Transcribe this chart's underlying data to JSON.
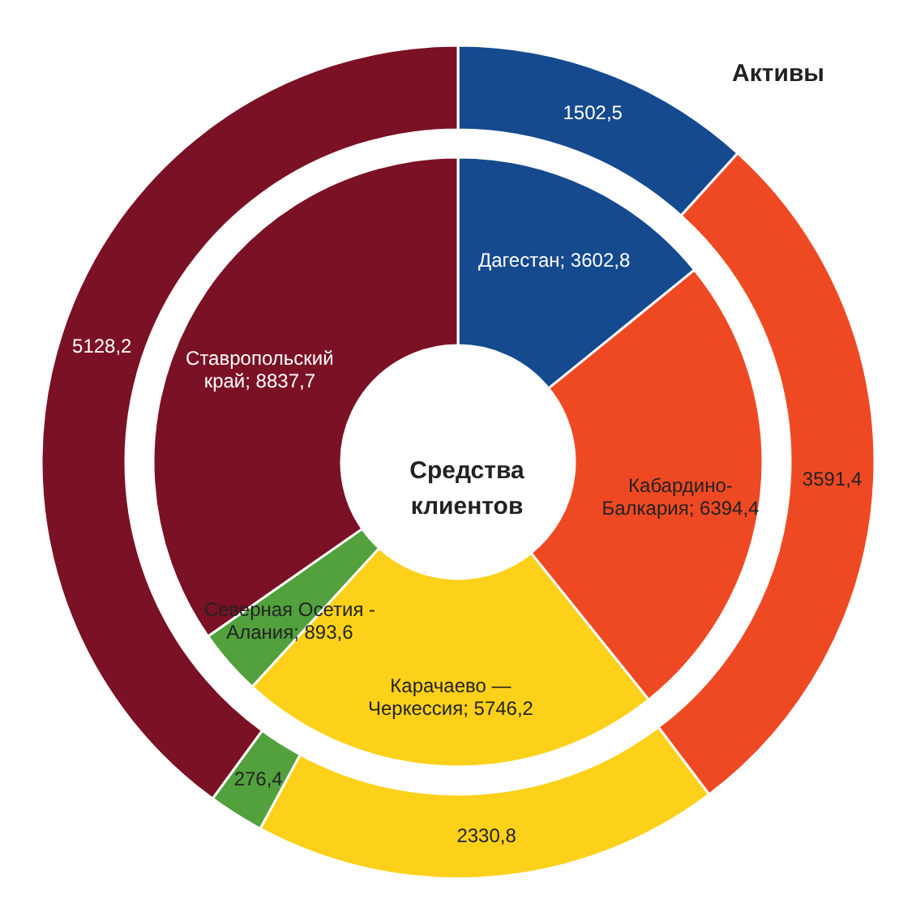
{
  "chart_data": {
    "type": "donut",
    "categories": [
      "Дагестан",
      "Кабардино-\nБалкария",
      "Карачаево —\nЧеркессия",
      "Северная Осетия -\nАлания",
      "Ставропольский\nкрай"
    ],
    "colors": [
      "#154a8f",
      "#ef4923",
      "#fdd11a",
      "#52a13d",
      "#7b1124"
    ],
    "series": [
      {
        "name": "Средства клиентов",
        "values": [
          3602.8,
          6394.4,
          5746.2,
          893.6,
          8837.7
        ],
        "value_labels": [
          "3602,8",
          "6394,4",
          "5746,2",
          "893,6",
          "8837,7"
        ]
      },
      {
        "name": "Активы",
        "values": [
          1502.5,
          3591.4,
          2330.8,
          276.4,
          5128.2
        ],
        "value_labels": [
          "1502,5",
          "3591,4",
          "2330,8",
          "276,4",
          "5128,2"
        ]
      }
    ]
  }
}
